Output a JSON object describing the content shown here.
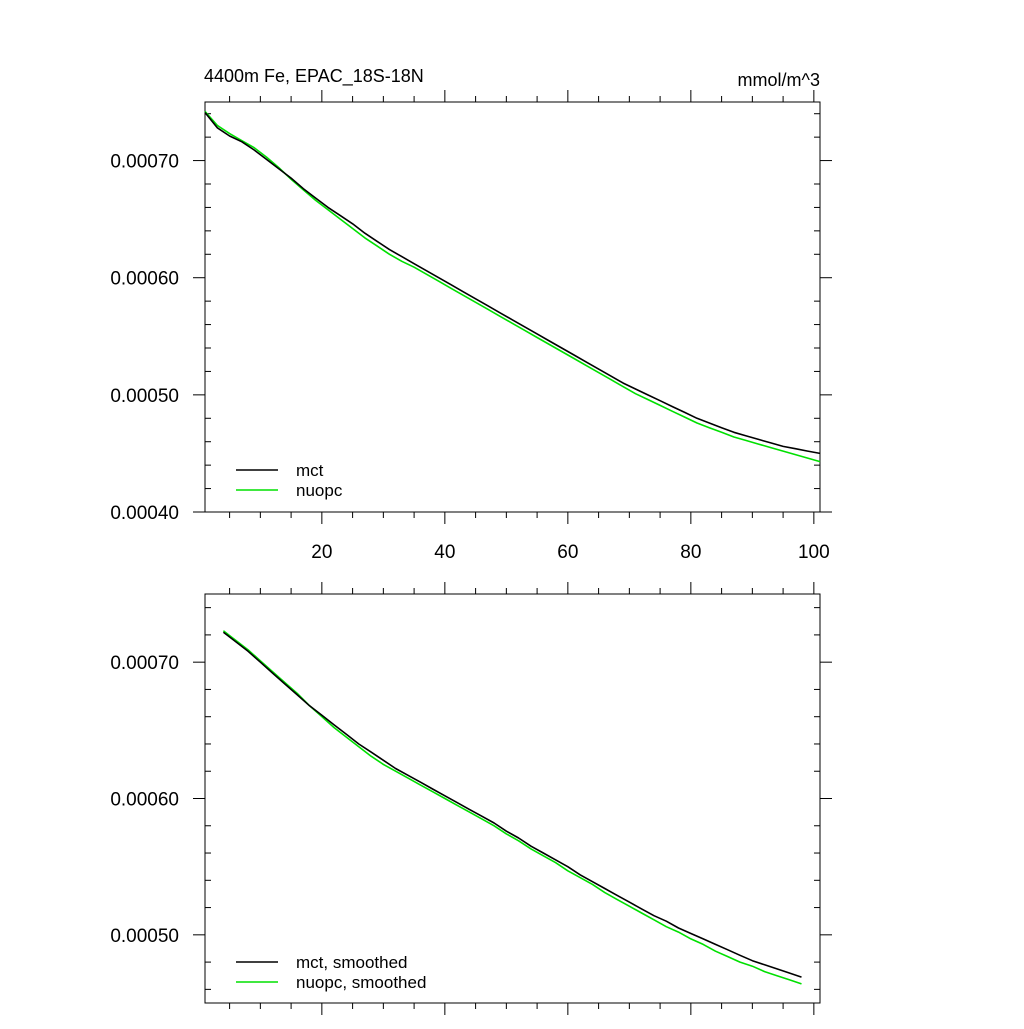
{
  "figure": {
    "title_left": "4400m Fe, EPAC_18S-18N",
    "title_right": "mmol/m^3"
  },
  "colors": {
    "mct": "#000000",
    "nuopc": "#00e000",
    "axis": "#000000"
  },
  "chart_data": [
    {
      "type": "line",
      "title": "4400m Fe, EPAC_18S-18N",
      "units": "mmol/m^3",
      "xlim": [
        1,
        101
      ],
      "ylim": [
        0.0004,
        0.00075
      ],
      "xticks": [
        20,
        40,
        60,
        80,
        100
      ],
      "xtick_labels": [
        "20",
        "40",
        "60",
        "80",
        "100"
      ],
      "yticks": [
        0.0004,
        0.0005,
        0.0006,
        0.0007
      ],
      "ytick_labels": [
        "0.00040",
        "0.00050",
        "0.00060",
        "0.00070"
      ],
      "legend_position": "bottom-left",
      "grid": false,
      "series": [
        {
          "name": "mct",
          "color": "#000000",
          "x": [
            1,
            3,
            5,
            7,
            9,
            11,
            13,
            15,
            17,
            19,
            21,
            23,
            25,
            27,
            29,
            31,
            33,
            35,
            37,
            39,
            41,
            43,
            45,
            47,
            49,
            51,
            53,
            55,
            57,
            59,
            61,
            63,
            65,
            67,
            69,
            71,
            73,
            75,
            77,
            79,
            81,
            83,
            85,
            87,
            89,
            91,
            93,
            95,
            97,
            99,
            101
          ],
          "values": [
            0.000741,
            0.000728,
            0.000721,
            0.000716,
            0.000709,
            0.000701,
            0.000693,
            0.000685,
            0.000676,
            0.000668,
            0.00066,
            0.000653,
            0.000646,
            0.000638,
            0.000631,
            0.000624,
            0.000618,
            0.000612,
            0.000606,
            0.0006,
            0.000594,
            0.000588,
            0.000582,
            0.000576,
            0.00057,
            0.000564,
            0.000558,
            0.000552,
            0.000546,
            0.00054,
            0.000534,
            0.000528,
            0.000522,
            0.000516,
            0.00051,
            0.000505,
            0.0005,
            0.000495,
            0.00049,
            0.000485,
            0.00048,
            0.000476,
            0.000472,
            0.000468,
            0.000465,
            0.000462,
            0.000459,
            0.000456,
            0.000454,
            0.000452,
            0.00045
          ]
        },
        {
          "name": "nuopc",
          "color": "#00e000",
          "x": [
            1,
            3,
            5,
            7,
            9,
            11,
            13,
            15,
            17,
            19,
            21,
            23,
            25,
            27,
            29,
            31,
            33,
            35,
            37,
            39,
            41,
            43,
            45,
            47,
            49,
            51,
            53,
            55,
            57,
            59,
            61,
            63,
            65,
            67,
            69,
            71,
            73,
            75,
            77,
            79,
            81,
            83,
            85,
            87,
            89,
            91,
            93,
            95,
            97,
            99,
            101
          ],
          "values": [
            0.000742,
            0.00073,
            0.000723,
            0.000717,
            0.000711,
            0.000703,
            0.000694,
            0.000684,
            0.000675,
            0.000666,
            0.000658,
            0.00065,
            0.000642,
            0.000634,
            0.000627,
            0.00062,
            0.000614,
            0.000609,
            0.000603,
            0.000597,
            0.000591,
            0.000585,
            0.000579,
            0.000573,
            0.000567,
            0.000561,
            0.000555,
            0.000549,
            0.000543,
            0.000537,
            0.000531,
            0.000525,
            0.000519,
            0.000513,
            0.000507,
            0.000501,
            0.000496,
            0.000491,
            0.000486,
            0.000481,
            0.000476,
            0.000472,
            0.000468,
            0.000464,
            0.000461,
            0.000458,
            0.000455,
            0.000452,
            0.000449,
            0.000446,
            0.000443
          ]
        }
      ]
    },
    {
      "type": "line",
      "title": "",
      "xlim": [
        1,
        101
      ],
      "ylim": [
        0.00045,
        0.00075
      ],
      "xticks": [
        20,
        40,
        60,
        80,
        100
      ],
      "xtick_labels": [],
      "yticks": [
        0.0005,
        0.0006,
        0.0007
      ],
      "ytick_labels": [
        "0.00050",
        "0.00060",
        "0.00070"
      ],
      "legend_position": "bottom-left",
      "grid": false,
      "series": [
        {
          "name": "mct, smoothed",
          "color": "#000000",
          "x": [
            4,
            6,
            8,
            10,
            12,
            14,
            16,
            18,
            20,
            22,
            24,
            26,
            28,
            30,
            32,
            34,
            36,
            38,
            40,
            42,
            44,
            46,
            48,
            50,
            52,
            54,
            56,
            58,
            60,
            62,
            64,
            66,
            68,
            70,
            72,
            74,
            76,
            78,
            80,
            82,
            84,
            86,
            88,
            90,
            92,
            94,
            96,
            98
          ],
          "values": [
            0.000722,
            0.000715,
            0.000708,
            0.0007,
            0.000692,
            0.000684,
            0.000676,
            0.000668,
            0.000661,
            0.000654,
            0.000647,
            0.00064,
            0.000634,
            0.000628,
            0.000622,
            0.000617,
            0.000612,
            0.000607,
            0.000602,
            0.000597,
            0.000592,
            0.000587,
            0.000582,
            0.000576,
            0.000571,
            0.000565,
            0.00056,
            0.000555,
            0.00055,
            0.000544,
            0.000539,
            0.000534,
            0.000529,
            0.000524,
            0.000519,
            0.000514,
            0.00051,
            0.000505,
            0.000501,
            0.000497,
            0.000493,
            0.000489,
            0.000485,
            0.000481,
            0.000478,
            0.000475,
            0.000472,
            0.000469
          ]
        },
        {
          "name": "nuopc, smoothed",
          "color": "#00e000",
          "x": [
            4,
            6,
            8,
            10,
            12,
            14,
            16,
            18,
            20,
            22,
            24,
            26,
            28,
            30,
            32,
            34,
            36,
            38,
            40,
            42,
            44,
            46,
            48,
            50,
            52,
            54,
            56,
            58,
            60,
            62,
            64,
            66,
            68,
            70,
            72,
            74,
            76,
            78,
            80,
            82,
            84,
            86,
            88,
            90,
            92,
            94,
            96,
            98
          ],
          "values": [
            0.000723,
            0.000716,
            0.000709,
            0.000701,
            0.000693,
            0.000685,
            0.000677,
            0.000668,
            0.00066,
            0.000652,
            0.000645,
            0.000638,
            0.000631,
            0.000625,
            0.00062,
            0.000615,
            0.00061,
            0.000605,
            0.0006,
            0.000595,
            0.00059,
            0.000585,
            0.00058,
            0.000574,
            0.000569,
            0.000563,
            0.000558,
            0.000553,
            0.000547,
            0.000542,
            0.000537,
            0.000531,
            0.000526,
            0.000521,
            0.000516,
            0.000511,
            0.000506,
            0.000502,
            0.000497,
            0.000493,
            0.000488,
            0.000484,
            0.00048,
            0.000477,
            0.000473,
            0.00047,
            0.000467,
            0.000464
          ]
        }
      ]
    }
  ]
}
